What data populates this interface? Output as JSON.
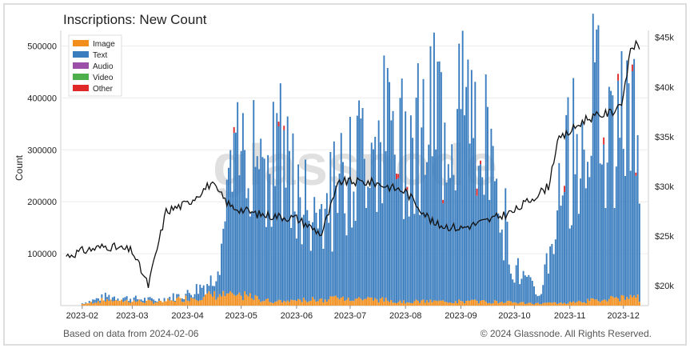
{
  "title": "Inscriptions: New Count",
  "footer_left": "Based on data from 2024-02-06",
  "footer_right": "© 2024 Glassnode. All Rights Reserved.",
  "watermark": "glassnode",
  "chart_data": {
    "type": "bar",
    "title": "Inscriptions: New Count",
    "xlabel": "",
    "ylabel": "Count",
    "ylim": [
      0,
      530000
    ],
    "y2lim": [
      18000,
      45700
    ],
    "grid": true,
    "legend_position": "top-left",
    "x_ticks": [
      "2023-02",
      "2023-03",
      "2023-04",
      "2023-05",
      "2023-06",
      "2023-07",
      "2023-08",
      "2023-09",
      "2023-10",
      "2023-11",
      "2023-12"
    ],
    "y_ticks": [
      "100000",
      "200000",
      "300000",
      "400000",
      "500000"
    ],
    "y2_ticks": [
      "$20k",
      "$25k",
      "$30k",
      "$35k",
      "$40k",
      "$45k"
    ],
    "colors": {
      "Image": "#f28e1c",
      "Text": "#3a7dbf",
      "Audio": "#9b4fa8",
      "Video": "#4daf4a",
      "Other": "#e02a2a",
      "price": "#111111"
    },
    "series": [
      {
        "name": "Image"
      },
      {
        "name": "Text"
      },
      {
        "name": "Audio"
      },
      {
        "name": "Video"
      },
      {
        "name": "Other"
      }
    ],
    "weekly_totals": [
      {
        "x": "2023-02-01",
        "total": 5000,
        "image": 3000
      },
      {
        "x": "2023-02-15",
        "total": 20000,
        "image": 12000
      },
      {
        "x": "2023-03-01",
        "total": 15000,
        "image": 9000
      },
      {
        "x": "2023-03-15",
        "total": 12000,
        "image": 7000
      },
      {
        "x": "2023-04-01",
        "total": 25000,
        "image": 15000
      },
      {
        "x": "2023-04-15",
        "total": 55000,
        "image": 20000
      },
      {
        "x": "2023-05-01",
        "total": 330000,
        "image": 20000
      },
      {
        "x": "2023-05-08",
        "total": 380000,
        "image": 15000
      },
      {
        "x": "2023-05-15",
        "total": 300000,
        "image": 10000
      },
      {
        "x": "2023-05-22",
        "total": 340000,
        "image": 8000
      },
      {
        "x": "2023-06-01",
        "total": 230000,
        "image": 10000
      },
      {
        "x": "2023-06-15",
        "total": 200000,
        "image": 12000
      },
      {
        "x": "2023-07-01",
        "total": 280000,
        "image": 15000
      },
      {
        "x": "2023-07-15",
        "total": 380000,
        "image": 12000
      },
      {
        "x": "2023-08-01",
        "total": 360000,
        "image": 8000
      },
      {
        "x": "2023-08-15",
        "total": 390000,
        "image": 8000
      },
      {
        "x": "2023-09-01",
        "total": 420000,
        "image": 8000
      },
      {
        "x": "2023-09-15",
        "total": 380000,
        "image": 8000
      },
      {
        "x": "2023-10-01",
        "total": 80000,
        "image": 6000
      },
      {
        "x": "2023-10-15",
        "total": 20000,
        "image": 4000
      },
      {
        "x": "2023-11-01",
        "total": 320000,
        "image": 6000
      },
      {
        "x": "2023-11-15",
        "total": 430000,
        "image": 10000
      },
      {
        "x": "2023-12-01",
        "total": 380000,
        "image": 15000
      }
    ],
    "price": [
      {
        "x": "2023-01-23",
        "y": 23000
      },
      {
        "x": "2023-02-01",
        "y": 23500
      },
      {
        "x": "2023-02-15",
        "y": 24000
      },
      {
        "x": "2023-03-01",
        "y": 23500
      },
      {
        "x": "2023-03-10",
        "y": 20000
      },
      {
        "x": "2023-03-20",
        "y": 27500
      },
      {
        "x": "2023-04-01",
        "y": 28300
      },
      {
        "x": "2023-04-14",
        "y": 30300
      },
      {
        "x": "2023-04-25",
        "y": 28000
      },
      {
        "x": "2023-05-10",
        "y": 27200
      },
      {
        "x": "2023-06-01",
        "y": 26800
      },
      {
        "x": "2023-06-15",
        "y": 25200
      },
      {
        "x": "2023-06-25",
        "y": 30500
      },
      {
        "x": "2023-07-14",
        "y": 30400
      },
      {
        "x": "2023-08-01",
        "y": 29500
      },
      {
        "x": "2023-08-17",
        "y": 26200
      },
      {
        "x": "2023-09-01",
        "y": 25800
      },
      {
        "x": "2023-09-15",
        "y": 26500
      },
      {
        "x": "2023-10-01",
        "y": 27500
      },
      {
        "x": "2023-10-20",
        "y": 30000
      },
      {
        "x": "2023-10-25",
        "y": 34500
      },
      {
        "x": "2023-11-10",
        "y": 36800
      },
      {
        "x": "2023-11-25",
        "y": 37500
      },
      {
        "x": "2023-12-01",
        "y": 38800
      },
      {
        "x": "2023-12-05",
        "y": 44000
      },
      {
        "x": "2023-12-08",
        "y": 44200
      },
      {
        "x": "2023-12-10",
        "y": 43800
      }
    ]
  }
}
